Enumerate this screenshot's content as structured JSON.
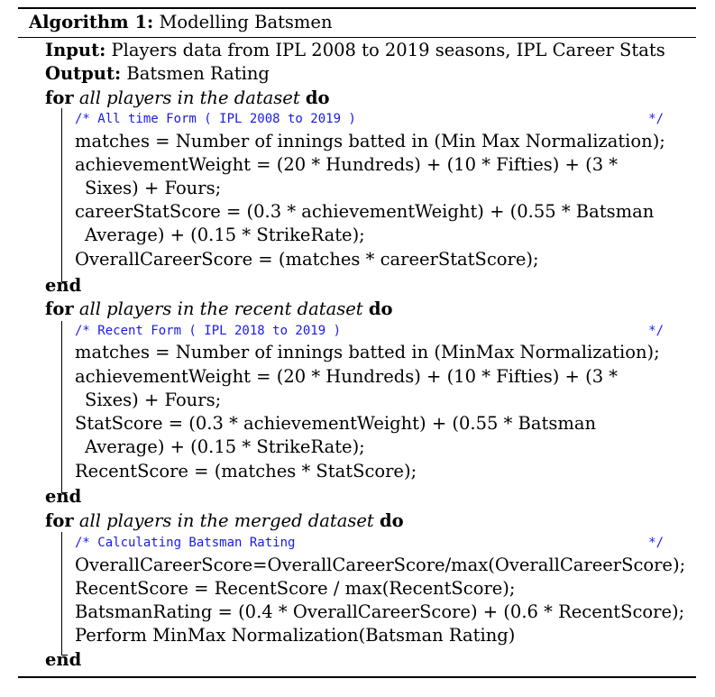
{
  "header": {
    "label": "Algorithm 1:",
    "title": "Modelling Batsmen"
  },
  "io": {
    "input_kw": "Input:",
    "input": "Players data from IPL 2008 to 2019 seasons, IPL Career Stats",
    "output_kw": "Output:",
    "output": "Batsmen Rating"
  },
  "kw": {
    "for": "for",
    "do": "do",
    "end": "end"
  },
  "comment_close": "*/",
  "blocks": [
    {
      "cond": "all players in the dataset",
      "comment": "/* All time Form ( IPL 2008 to 2019 )",
      "lines": [
        "matches = Number of innings batted in (Min Max Normalization);",
        "achievementWeight = (20 * Hundreds) + (10 * Fifties) + (3 *",
        "Sixes) + Fours;",
        "careerStatScore = (0.3 * achievementWeight) + (0.55 * Batsman",
        "Average) + (0.15 * StrikeRate);",
        "OverallCareerScore = (matches * careerStatScore);"
      ]
    },
    {
      "cond": "all players in the recent dataset",
      "comment": "/* Recent Form ( IPL 2018 to 2019 )",
      "lines": [
        "matches = Number of innings batted in (MinMax Normalization);",
        "achievementWeight = (20 * Hundreds) + (10 * Fifties) + (3 *",
        "Sixes) + Fours;",
        "StatScore = (0.3 * achievementWeight) + (0.55 * Batsman",
        "Average) + (0.15 * StrikeRate);",
        "RecentScore = (matches * StatScore);"
      ]
    },
    {
      "cond": "all players in the merged dataset",
      "comment": "/* Calculating Batsman Rating",
      "lines": [
        "OverallCareerScore=OverallCareerScore/max(OverallCareerScore);",
        "RecentScore = RecentScore / max(RecentScore);",
        "BatsmanRating = (0.4 * OverallCareerScore) + (0.6 * RecentScore);",
        "Perform MinMax Normalization(Batsman Rating)"
      ]
    }
  ]
}
